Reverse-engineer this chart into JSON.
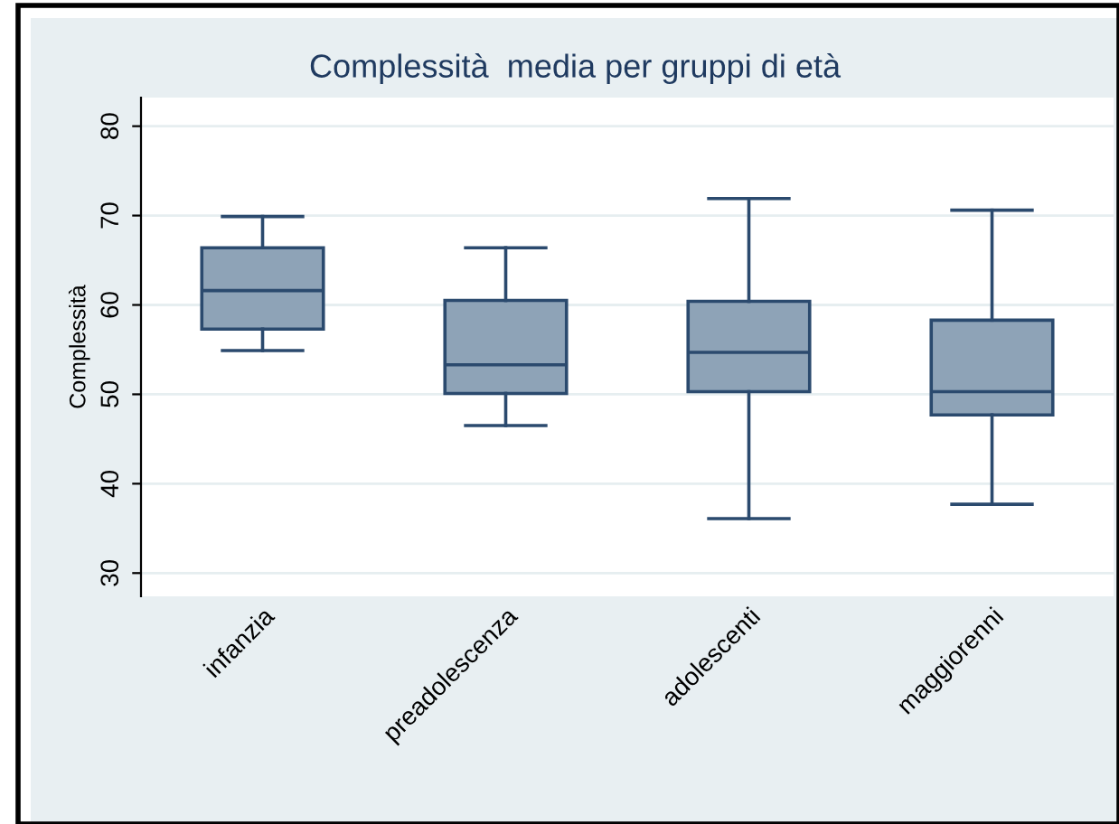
{
  "chart_data": {
    "type": "box",
    "title": "Complessità  media per gruppi di età",
    "ylabel": "Complessità",
    "categories": [
      "infanzia",
      "preadolescenza",
      "adolescenti",
      "maggiorenni"
    ],
    "boxes": [
      {
        "low": 54.9,
        "q1": 57.3,
        "median": 61.6,
        "q3": 66.4,
        "high": 69.9
      },
      {
        "low": 46.5,
        "q1": 50.1,
        "median": 53.3,
        "q3": 60.5,
        "high": 66.4
      },
      {
        "low": 36.1,
        "q1": 50.3,
        "median": 54.7,
        "q3": 60.4,
        "high": 71.9
      },
      {
        "low": 37.7,
        "q1": 47.7,
        "median": 50.3,
        "q3": 58.3,
        "high": 70.6
      }
    ],
    "color": "#8ea3b7",
    "ylim": [
      27.4,
      83.2
    ],
    "yticks": [
      30,
      40,
      50,
      60,
      70,
      80
    ],
    "grid": "y"
  }
}
